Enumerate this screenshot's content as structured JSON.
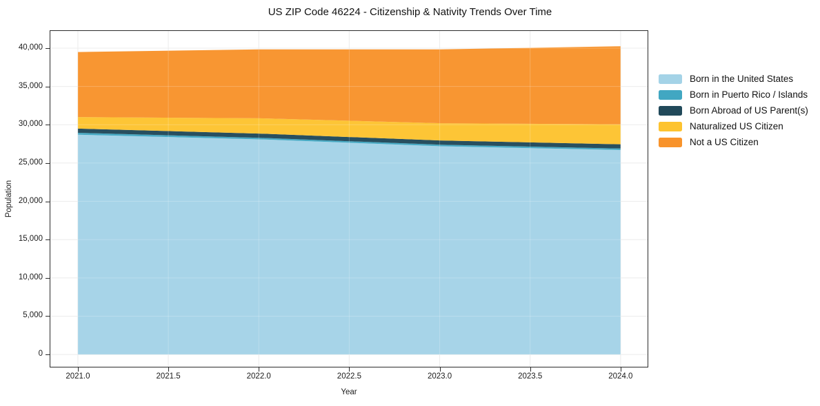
{
  "page": {
    "background": "#ffffff"
  },
  "chart_data": {
    "type": "area",
    "stacked": true,
    "title": "US ZIP Code 46224 - Citizenship & Nativity Trends Over Time",
    "xlabel": "Year",
    "ylabel": "Population",
    "x": [
      2021,
      2022,
      2023,
      2024
    ],
    "series": [
      {
        "name": "Born in the United States",
        "color": "#A4D3E7",
        "values": [
          28700,
          28100,
          27200,
          26700
        ]
      },
      {
        "name": "Born in Puerto Rico / Islands",
        "color": "#41A7C2",
        "values": [
          250,
          200,
          200,
          200
        ]
      },
      {
        "name": "Born Abroad of US Parent(s)",
        "color": "#21495A",
        "values": [
          550,
          550,
          550,
          550
        ]
      },
      {
        "name": "Naturalized US Citizen",
        "color": "#FDC32F",
        "values": [
          1500,
          2000,
          2250,
          2600
        ]
      },
      {
        "name": "Not a US Citizen",
        "color": "#F8932B",
        "values": [
          8500,
          9000,
          9650,
          10200
        ]
      }
    ],
    "stacked_totals": [
      39500,
      39850,
      39850,
      40250
    ],
    "xlim": [
      2020.844,
      2024.153
    ],
    "ylim": [
      -1700,
      42340
    ],
    "x_ticks": [
      2021.0,
      2021.5,
      2022.0,
      2022.5,
      2023.0,
      2023.5,
      2024.0
    ],
    "x_tick_labels": [
      "2021.0",
      "2021.5",
      "2022.0",
      "2022.5",
      "2023.0",
      "2023.5",
      "2024.0"
    ],
    "y_ticks": [
      0,
      5000,
      10000,
      15000,
      20000,
      25000,
      30000,
      35000,
      40000
    ],
    "y_tick_labels": [
      "0",
      "5,000",
      "10,000",
      "15,000",
      "20,000",
      "25,000",
      "30,000",
      "35,000",
      "40,000"
    ],
    "grid": true,
    "legend_position": "right",
    "colors": {
      "grid": "#e7e7e7",
      "grid_over_area": "rgba(255,255,255,0.22)",
      "frame": "#2a2a2a",
      "text": "#1a1a1a"
    }
  }
}
